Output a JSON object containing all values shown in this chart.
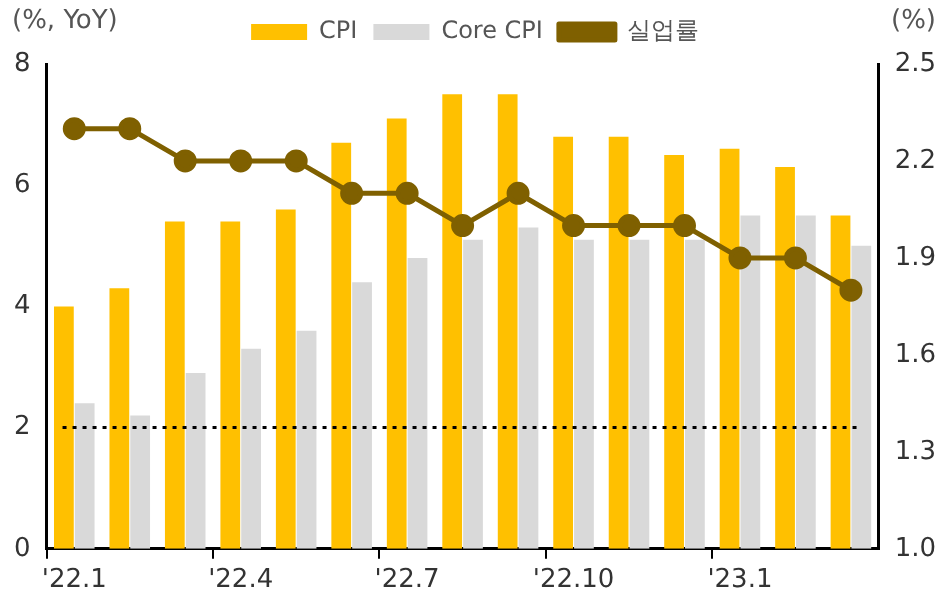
{
  "chart_data": {
    "type": "bar",
    "ylabel": "(%, YoY)",
    "y2label": "(%)",
    "categories": [
      "'22.1",
      null,
      null,
      "'22.4",
      null,
      null,
      "'22.7",
      null,
      null,
      "'22.10",
      null,
      null,
      "'23.1",
      null,
      null
    ],
    "series": [
      {
        "name": "CPI",
        "color": "#ffc000",
        "values": [
          4.0,
          4.3,
          5.4,
          5.4,
          5.6,
          6.7,
          7.1,
          7.5,
          7.5,
          6.8,
          6.8,
          6.5,
          6.6,
          6.3,
          5.5
        ]
      },
      {
        "name": "Core CPI",
        "color": "#d9d9d9",
        "values": [
          2.4,
          2.2,
          2.9,
          3.3,
          3.6,
          4.4,
          4.8,
          5.1,
          5.3,
          5.1,
          5.1,
          5.1,
          5.5,
          5.5,
          5.0
        ]
      },
      {
        "name": "실업률",
        "color": "#7f6000",
        "type": "line",
        "axis": "y2",
        "marker": "circle",
        "values": [
          2.3,
          2.3,
          2.2,
          2.2,
          2.2,
          2.1,
          2.1,
          2.0,
          2.1,
          2.0,
          2.0,
          2.0,
          1.9,
          1.9,
          1.8
        ]
      }
    ],
    "ylim": [
      0,
      8
    ],
    "yticks": [
      0,
      2,
      4,
      6,
      8
    ],
    "y2lim": [
      1.0,
      2.5
    ],
    "y2ticks": [
      {
        "value": 1.0,
        "label": "1.0"
      },
      {
        "value": 1.3,
        "label": "1.3"
      },
      {
        "value": 1.6,
        "label": "1.6"
      },
      {
        "value": 1.9,
        "label": "1.9"
      },
      {
        "value": 2.2,
        "label": "2.2"
      },
      {
        "value": 2.5,
        "label": "2.5"
      }
    ],
    "ref_lines": [
      {
        "axis": "y",
        "value": 2,
        "color": "#000000",
        "line_style": "dotted"
      }
    ],
    "grid": false,
    "legend": "top"
  }
}
